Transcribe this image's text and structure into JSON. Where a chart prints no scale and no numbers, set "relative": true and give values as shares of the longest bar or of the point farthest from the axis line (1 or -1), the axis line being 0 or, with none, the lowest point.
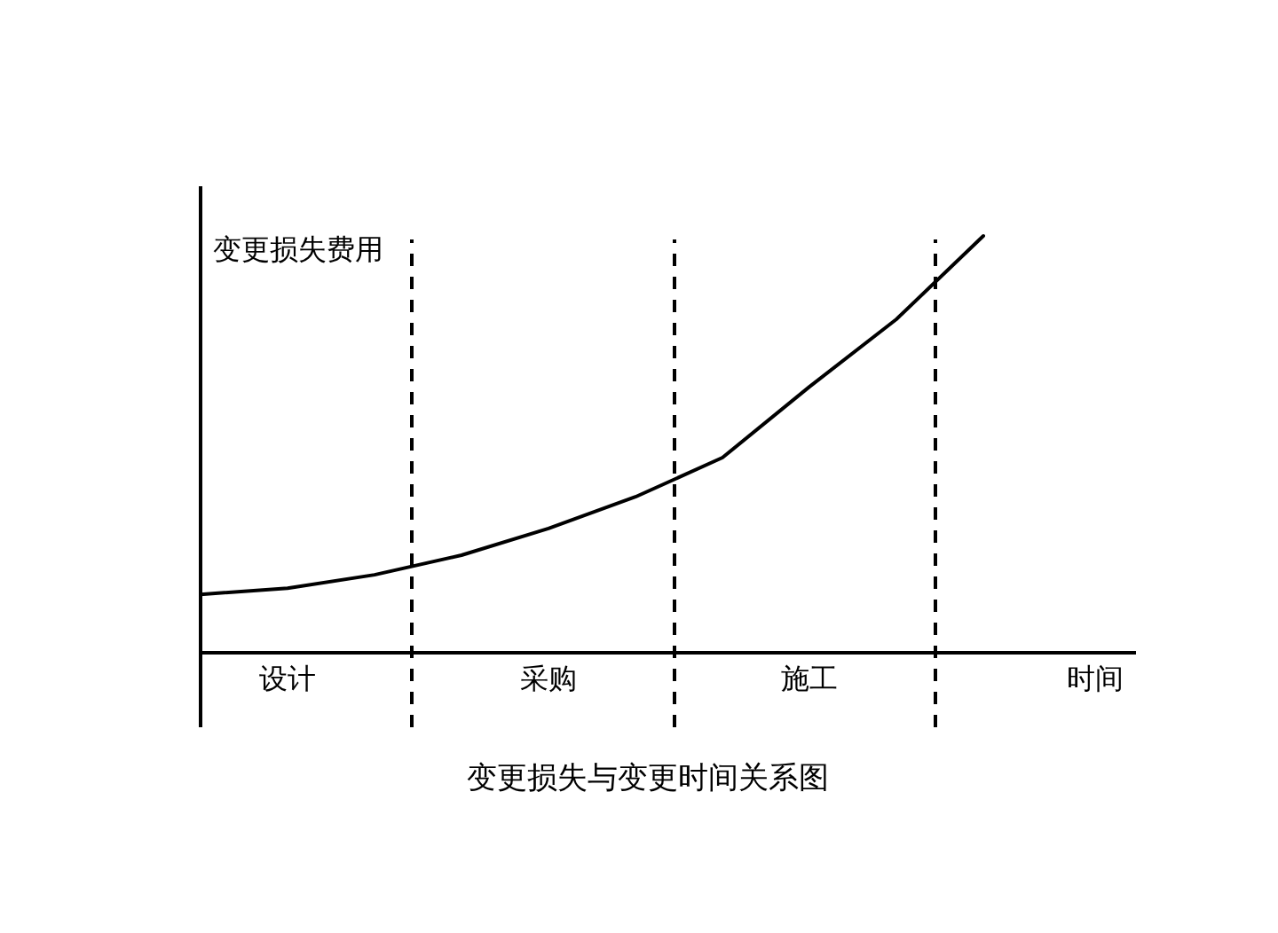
{
  "chart_data": {
    "type": "line",
    "title": "变更损失与变更时间关系图",
    "xlabel": "时间",
    "ylabel": "变更损失费用",
    "relative": true,
    "categories": [
      null,
      "设计",
      null,
      null,
      "采购",
      null,
      null,
      "施工",
      null,
      null
    ],
    "series": [
      {
        "color": "#000000",
        "values": [
          0.14,
          0.155,
          0.187,
          0.234,
          0.298,
          0.374,
          0.468,
          0.638,
          0.8,
          1
        ]
      }
    ],
    "marker": "none",
    "line_style": "solid"
  }
}
